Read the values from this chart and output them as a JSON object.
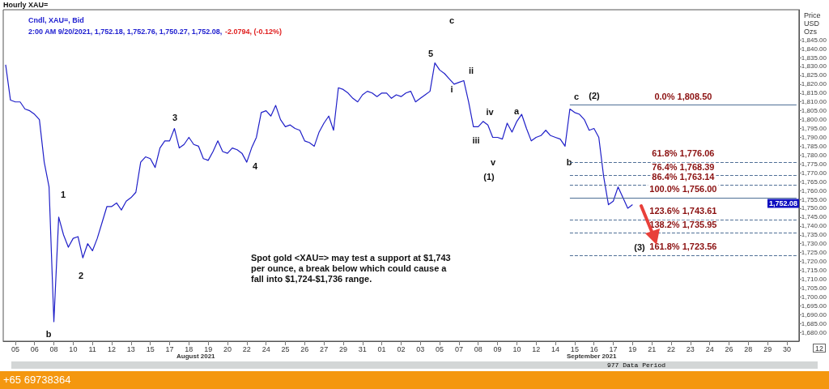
{
  "chart_data": {
    "type": "line",
    "title": "Hourly XAU=",
    "subtitle": "Cndl, XAU=, Bid",
    "ylabel": "Price USD Ozs",
    "categories": [
      null,
      null,
      "05",
      null,
      null,
      null,
      "06",
      null,
      null,
      null,
      "08",
      null,
      null,
      null,
      "10",
      null,
      null,
      null,
      "11",
      null,
      null,
      null,
      "12",
      null,
      null,
      null,
      "13",
      null,
      null,
      null,
      "15",
      null,
      null,
      null,
      "17",
      null,
      null,
      null,
      "18",
      null,
      null,
      null,
      "19",
      null,
      null,
      null,
      "20",
      null,
      null,
      null,
      "22",
      null,
      null,
      null,
      "24",
      null,
      null,
      null,
      "25",
      null,
      null,
      null,
      "26",
      null,
      null,
      null,
      "27",
      null,
      null,
      null,
      "29",
      null,
      null,
      null,
      "31",
      null,
      null,
      null,
      "01",
      null,
      null,
      null,
      "02",
      null,
      null,
      null,
      "03",
      null,
      null,
      null,
      "05",
      null,
      null,
      null,
      "07",
      null,
      null,
      null,
      "08",
      null,
      null,
      null,
      "09",
      null,
      null,
      null,
      "10",
      null,
      null,
      null,
      "12",
      null,
      null,
      null,
      "14",
      null,
      null,
      null,
      "15",
      null,
      null,
      null,
      "16",
      null,
      null,
      null,
      "17",
      null,
      null,
      null,
      "19",
      null,
      null,
      null,
      "21",
      null,
      null,
      null,
      "22",
      null,
      null,
      null,
      "23",
      null,
      null,
      null,
      "24",
      null,
      null,
      null,
      "26",
      null,
      null,
      null,
      "28",
      null,
      null,
      null,
      "29",
      null,
      null,
      null,
      "30",
      null,
      null
    ],
    "series": [
      {
        "color": "#1f1fc8",
        "values": [
          1831,
          1811,
          1810,
          1810,
          1806,
          1805,
          1803,
          1800,
          1776,
          1762,
          1686,
          1745,
          1735,
          1728,
          1733,
          1734,
          1722,
          1730,
          1726,
          1733,
          1742,
          1751,
          1751,
          1753,
          1749,
          1754,
          1756,
          1759,
          1776,
          1779,
          1778,
          1773,
          1784,
          1788,
          1788,
          1795,
          1784,
          1786,
          1790,
          1786,
          1785,
          1778,
          1777,
          1782,
          1788,
          1782,
          1781,
          1784,
          1783,
          1781,
          1776,
          1784,
          1790,
          1804,
          1805,
          1802,
          1808,
          1800,
          1796,
          1797,
          1795,
          1794,
          1788,
          1787,
          1785,
          1793,
          1798,
          1802,
          1794,
          1818,
          1817,
          1815,
          1812,
          1810,
          1814,
          1816,
          1815,
          1813,
          1815,
          1815,
          1812,
          1814,
          1813,
          1815,
          1816,
          1810,
          1812,
          1814,
          1816,
          1832,
          1828,
          1826,
          1823,
          1820,
          1821,
          1822,
          1810,
          1796,
          1796,
          1799,
          1797,
          1790,
          1790,
          1789,
          1798,
          1793,
          1799,
          1803,
          1795,
          1788,
          1790,
          1791,
          1794,
          1791,
          1790,
          1789,
          1785,
          1806,
          1804,
          1803,
          1800,
          1794,
          1795,
          1790,
          1768,
          1752,
          1754,
          1762,
          1756,
          1750,
          1752,
          null,
          null,
          null,
          null,
          null,
          null,
          null,
          null,
          null,
          null,
          null,
          null,
          null,
          null,
          null,
          null,
          null,
          null,
          null,
          null,
          null,
          null,
          null,
          null,
          null,
          null,
          null,
          null,
          null,
          null,
          null,
          null,
          null,
          null
        ]
      }
    ],
    "ylim": [
      1675,
      1862
    ],
    "yticks": [
      {
        "value": 1680,
        "label": "1,680.00"
      },
      {
        "value": 1685,
        "label": "1,685.00"
      },
      {
        "value": 1690,
        "label": "1,690.00"
      },
      {
        "value": 1695,
        "label": "1,695.00"
      },
      {
        "value": 1700,
        "label": "1,700.00"
      },
      {
        "value": 1705,
        "label": "1,705.00"
      },
      {
        "value": 1710,
        "label": "1,710.00"
      },
      {
        "value": 1715,
        "label": "1,715.00"
      },
      {
        "value": 1720,
        "label": "1,720.00"
      },
      {
        "value": 1725,
        "label": "1,725.00"
      },
      {
        "value": 1730,
        "label": "1,730.00"
      },
      {
        "value": 1735,
        "label": "1,735.00"
      },
      {
        "value": 1740,
        "label": "1,740.00"
      },
      {
        "value": 1745,
        "label": "1,745.00"
      },
      {
        "value": 1750,
        "label": "1,750.00"
      },
      {
        "value": 1755,
        "label": "1,755.00"
      },
      {
        "value": 1760,
        "label": "1,760.00"
      },
      {
        "value": 1765,
        "label": "1,765.00"
      },
      {
        "value": 1770,
        "label": "1,770.00"
      },
      {
        "value": 1775,
        "label": "1,775.00"
      },
      {
        "value": 1780,
        "label": "1,780.00"
      },
      {
        "value": 1785,
        "label": "1,785.00"
      },
      {
        "value": 1790,
        "label": "1,790.00"
      },
      {
        "value": 1795,
        "label": "1,795.00"
      },
      {
        "value": 1800,
        "label": "1,800.00"
      },
      {
        "value": 1805,
        "label": "1,805.00"
      },
      {
        "value": 1810,
        "label": "1,810.00"
      },
      {
        "value": 1815,
        "label": "1,815.00"
      },
      {
        "value": 1820,
        "label": "1,820.00"
      },
      {
        "value": 1825,
        "label": "1,825.00"
      },
      {
        "value": 1830,
        "label": "1,830.00"
      },
      {
        "value": 1835,
        "label": "1,835.00"
      },
      {
        "value": 1840,
        "label": "1,840.00"
      },
      {
        "value": 1845,
        "label": "1,845.00"
      }
    ],
    "ref_lines": [
      {
        "axis": "y",
        "value": 1808.5,
        "label": "0.0% 1,808.50",
        "color": "#4f6f96",
        "line_style": "solid"
      },
      {
        "axis": "y",
        "value": 1776.06,
        "label": "61.8% 1,776.06",
        "color": "#4f6f96",
        "line_style": "dashed"
      },
      {
        "axis": "y",
        "value": 1768.39,
        "label": "76.4% 1,768.39",
        "color": "#4f6f96",
        "line_style": "dashed"
      },
      {
        "axis": "y",
        "value": 1763.14,
        "label": "86.4% 1,763.14",
        "color": "#4f6f96",
        "line_style": "dashed"
      },
      {
        "axis": "y",
        "value": 1756.0,
        "label": "100.0% 1,756.00",
        "color": "#4f6f96",
        "line_style": "solid"
      },
      {
        "axis": "y",
        "value": 1743.61,
        "label": "123.6% 1,743.61",
        "color": "#4f6f96",
        "line_style": "dashed"
      },
      {
        "axis": "y",
        "value": 1735.95,
        "label": "138.2% 1,735.95",
        "color": "#4f6f96",
        "line_style": "dashed"
      },
      {
        "axis": "y",
        "value": 1723.56,
        "label": "161.8% 1,723.56",
        "color": "#4f6f96",
        "line_style": "dashed"
      }
    ],
    "annotations": [
      "2:00 AM 9/20/2021, 1,752.18, 1,752.76, 1,750.27, 1,752.08,",
      "-2.0794, (-0.12%)",
      "Spot gold <XAU=> may test a support at $1,743 per ounce, a break below which could cause a fall into $1,724-$1,736 range.",
      "August 2021",
      "September 2021",
      "977 Data Period",
      "+65 69738364",
      "1,752.08",
      "b",
      "1",
      "2",
      "3",
      "4",
      "5",
      "c",
      "i",
      "ii",
      "iii",
      "iv",
      "v",
      "(1)",
      "a",
      "b",
      "c",
      "(2)",
      "(3)",
      "12"
    ],
    "grid": false,
    "marker": "none",
    "line_style": "solid"
  }
}
